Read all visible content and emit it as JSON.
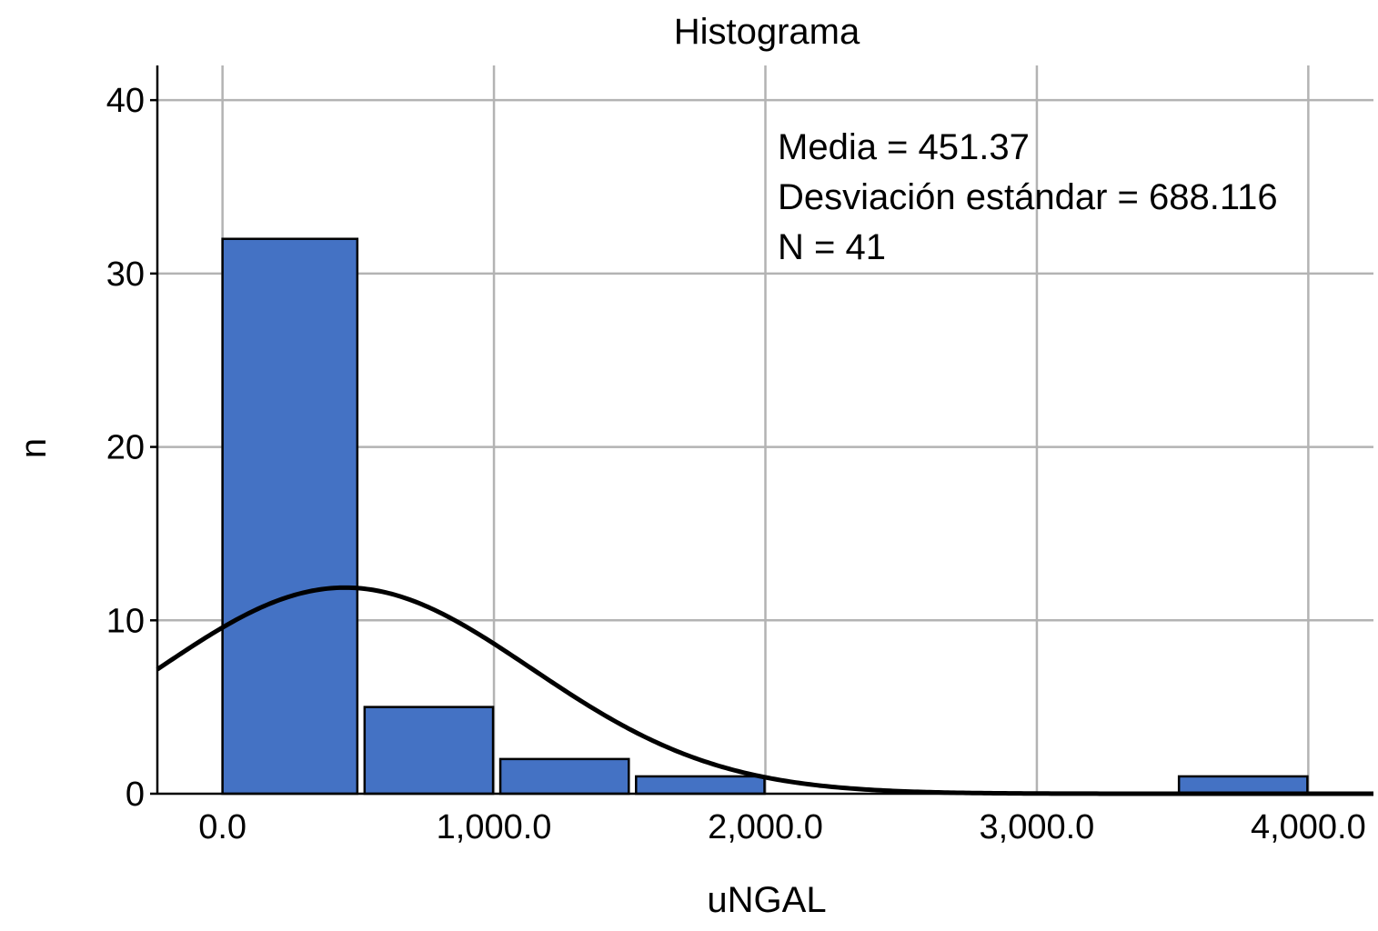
{
  "chart_data": {
    "type": "bar",
    "subtype": "histogram",
    "title": "Histograma",
    "xlabel": "uNGAL",
    "ylabel": "n",
    "xlim": [
      -240,
      4240
    ],
    "ylim": [
      0,
      42
    ],
    "x_ticks": [
      0,
      1000,
      2000,
      3000,
      4000
    ],
    "x_tick_labels": [
      "0.0",
      "1,000.0",
      "2,000.0",
      "3,000.0",
      "4,000.0"
    ],
    "y_ticks": [
      0,
      10,
      20,
      30,
      40
    ],
    "y_tick_labels": [
      "0",
      "10",
      "20",
      "30",
      "40"
    ],
    "bin_width": 500,
    "bins": [
      {
        "start": 0,
        "end": 500,
        "count": 32
      },
      {
        "start": 500,
        "end": 1000,
        "count": 5
      },
      {
        "start": 1000,
        "end": 1500,
        "count": 2
      },
      {
        "start": 1500,
        "end": 2000,
        "count": 1
      },
      {
        "start": 3500,
        "end": 4000,
        "count": 1
      }
    ],
    "bar_color": "#4472C4",
    "grid": true,
    "normal_curve": {
      "mean": 451.37,
      "sd": 688.116,
      "n": 41
    },
    "stats": {
      "mean_label": "Media = 451.37",
      "sd_label": "Desviación estándar = 688.116",
      "n_label": "N = 41"
    }
  }
}
